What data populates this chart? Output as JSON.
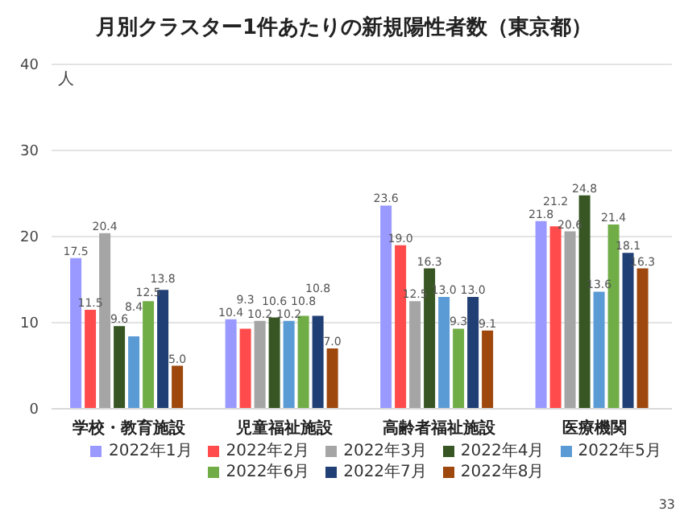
{
  "chart_data": {
    "type": "bar",
    "title": "月別クラスター1件あたりの新規陽性者数（東京都）",
    "ylabel": "人",
    "categories": [
      "学校・教育施設",
      "児童福祉施設",
      "高齢者福祉施設",
      "医療機関"
    ],
    "series": [
      {
        "name": "2022年1月",
        "color": "#9999ff",
        "values": [
          17.5,
          10.4,
          23.6,
          21.8
        ],
        "value_labels": [
          "17.5",
          "10.4",
          "23.6",
          "21.8"
        ]
      },
      {
        "name": "2022年2月",
        "color": "#ff4b4b",
        "values": [
          11.5,
          9.3,
          19.0,
          21.2
        ],
        "value_labels": [
          "11.5",
          "9.3",
          "19.0",
          "21.2"
        ]
      },
      {
        "name": "2022年3月",
        "color": "#a5a5a5",
        "values": [
          20.4,
          10.2,
          12.5,
          20.6
        ],
        "value_labels": [
          "20.4",
          "10.2",
          "12.5",
          "20.6"
        ]
      },
      {
        "name": "2022年4月",
        "color": "#375623",
        "values": [
          9.6,
          10.6,
          16.3,
          24.8
        ],
        "value_labels": [
          "9.6",
          "10.6",
          "16.3",
          "24.8"
        ]
      },
      {
        "name": "2022年5月",
        "color": "#5b9bd5",
        "values": [
          8.4,
          10.2,
          13.0,
          13.6
        ],
        "value_labels": [
          "8.4",
          "10.2",
          "13.0",
          "13.6"
        ]
      },
      {
        "name": "2022年6月",
        "color": "#70ad47",
        "values": [
          12.5,
          10.8,
          9.3,
          21.4
        ],
        "value_labels": [
          "12.5",
          "10.8",
          "9.3",
          "21.4"
        ]
      },
      {
        "name": "2022年7月",
        "color": "#203f74",
        "values": [
          13.8,
          10.8,
          13.0,
          18.1
        ],
        "value_labels": [
          "13.8",
          "10.8",
          "13.0",
          "18.1"
        ]
      },
      {
        "name": "2022年8月",
        "color": "#9e480e",
        "values": [
          5.0,
          7.0,
          9.1,
          16.3
        ],
        "value_labels": [
          "5.0",
          "7.0",
          "9.1",
          "16.3"
        ]
      }
    ],
    "ylim": [
      0,
      40
    ],
    "yticks": [
      0,
      10,
      20,
      30,
      40
    ],
    "grid": "y",
    "legend": "bottom",
    "annotations": [
      "33"
    ]
  }
}
